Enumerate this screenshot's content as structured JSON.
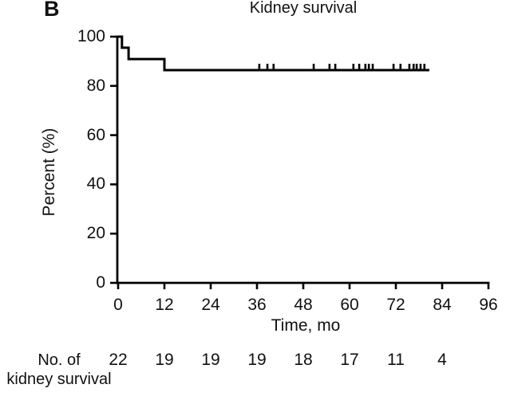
{
  "panel_label": "B",
  "chart_data": {
    "type": "line",
    "subtype": "kaplan-meier-step-curve",
    "title": "Kidney survival",
    "xlabel": "Time, mo",
    "ylabel": "Percent (%)",
    "xlim": [
      0,
      96
    ],
    "ylim": [
      0,
      100
    ],
    "x_ticks": [
      0,
      12,
      24,
      36,
      48,
      60,
      72,
      84,
      96
    ],
    "y_ticks": [
      0,
      20,
      40,
      60,
      80,
      100
    ],
    "grid": false,
    "legend": "none",
    "line_color": "#000000",
    "background_color": "#ffffff",
    "series": [
      {
        "name": "Kidney survival",
        "step_points": [
          [
            0,
            100
          ],
          [
            1,
            100
          ],
          [
            1,
            95.5
          ],
          [
            2.7,
            95.5
          ],
          [
            2.7,
            90.9
          ],
          [
            12,
            90.9
          ],
          [
            12,
            86.4
          ],
          [
            80.7,
            86.4
          ]
        ],
        "censor_level": 86.4,
        "censor_times": [
          36.6,
          38.7,
          40.3,
          50.7,
          54.8,
          56.3,
          61.0,
          62.5,
          64.1,
          65.0,
          66.0,
          71.4,
          73.2,
          75.5,
          76.6,
          77.4,
          78.4,
          79.4
        ]
      }
    ],
    "at_risk": {
      "label_line1": "No. of",
      "label_line2": "kidney survival",
      "times": [
        0,
        12,
        24,
        36,
        48,
        60,
        72,
        84
      ],
      "counts": [
        22,
        19,
        19,
        19,
        18,
        17,
        11,
        4
      ]
    }
  }
}
